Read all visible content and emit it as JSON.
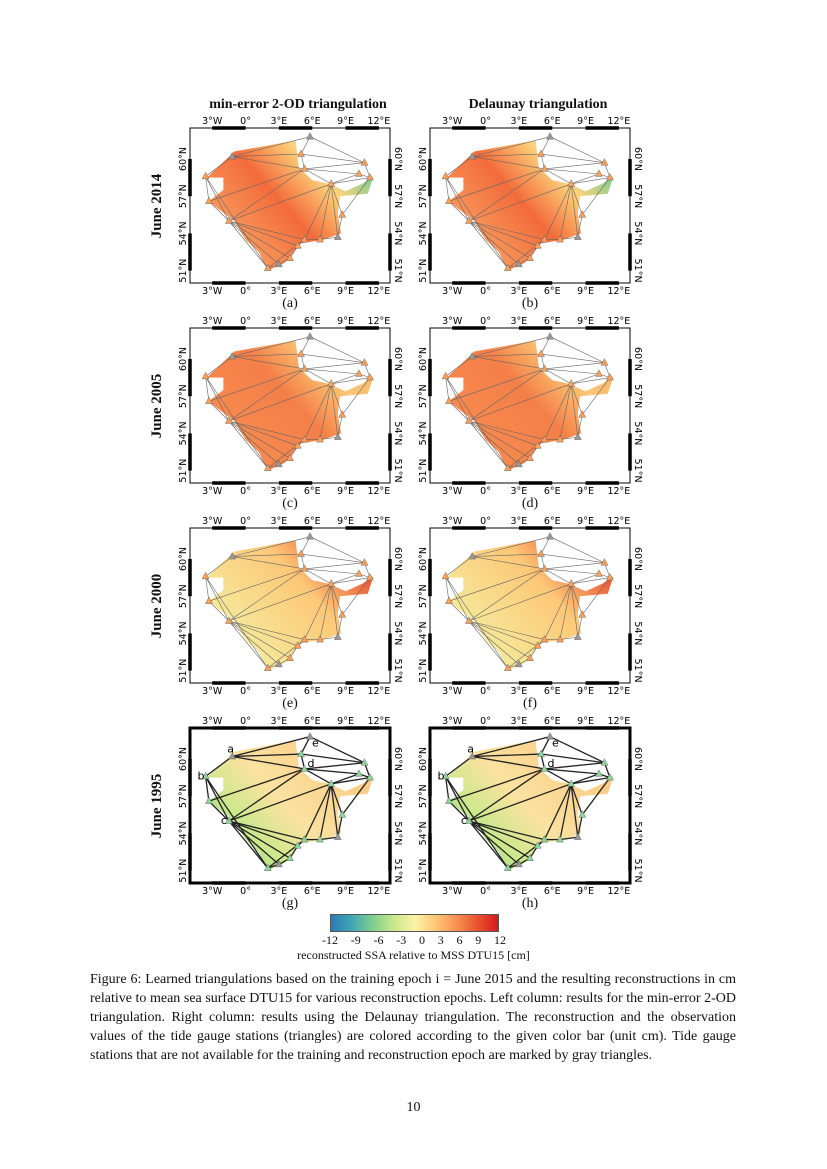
{
  "columns": [
    "min-error 2-OD triangulation",
    "Delaunay triangulation"
  ],
  "rows": [
    "June 2014",
    "June 2005",
    "June 2000",
    "June 1995"
  ],
  "sublabels": [
    "(a)",
    "(b)",
    "(c)",
    "(d)",
    "(e)",
    "(f)",
    "(g)",
    "(h)"
  ],
  "lon_ticks": [
    "3°W",
    "0°",
    "3°E",
    "6°E",
    "9°E",
    "12°E"
  ],
  "lat_ticks": [
    "51°N",
    "54°N",
    "57°N",
    "60°N"
  ],
  "station_labels": [
    "a",
    "b",
    "c",
    "d",
    "e"
  ],
  "colorbar": {
    "ticks": [
      "-12",
      "-9",
      "-6",
      "-3",
      "0",
      "3",
      "6",
      "9",
      "12"
    ],
    "label": "reconstructed SSA relative to MSS DTU15 [cm]",
    "colors": [
      "#2c7bb6",
      "#7fcf8f",
      "#fbf2a8",
      "#f99153",
      "#d7191c"
    ]
  },
  "caption": "Figure 6: Learned triangulations based on the training epoch i = June 2015 and the resulting reconstructions in cm relative to mean sea surface DTU15 for various reconstruction epochs. Left column: results for the min-error 2-OD triangulation. Right column: results using the Delaunay triangulation. The reconstruction and the observation values of the tide gauge stations (triangles) are colored according to the given color bar (unit cm). Tide gauge stations that are not available for the training and reconstruction epoch are marked by gray triangles.",
  "page_number": "10"
}
